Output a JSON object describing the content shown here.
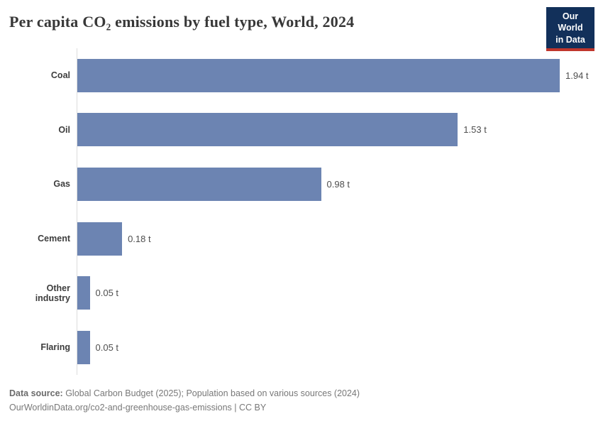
{
  "header": {
    "title": "Per capita CO₂ emissions by fuel type, World, 2024"
  },
  "logo": {
    "line1": "Our World",
    "line2": "in Data",
    "bg_color": "#12305a",
    "accent_color": "#c0362c"
  },
  "chart_data": {
    "type": "bar",
    "orientation": "horizontal",
    "title": "Per capita CO₂ emissions by fuel type, World, 2024",
    "categories": [
      "Coal",
      "Oil",
      "Gas",
      "Cement",
      "Other industry",
      "Flaring"
    ],
    "values": [
      1.94,
      1.53,
      0.98,
      0.18,
      0.05,
      0.05
    ],
    "value_labels": [
      "1.94 t",
      "1.53 t",
      "0.98 t",
      "0.18 t",
      "0.05 t",
      "0.05 t"
    ],
    "unit": "t",
    "xlim": [
      0,
      1.94
    ],
    "grid": false,
    "legend": "none",
    "bar_color": "#6c84b2",
    "axis_line_color": "#dcdcdc"
  },
  "footer": {
    "source_label": "Data source:",
    "source_text": " Global Carbon Budget (2025); Population based on various sources (2024)",
    "link_text": "OurWorldinData.org/co2-and-greenhouse-gas-emissions",
    "license_text": " | CC BY"
  }
}
